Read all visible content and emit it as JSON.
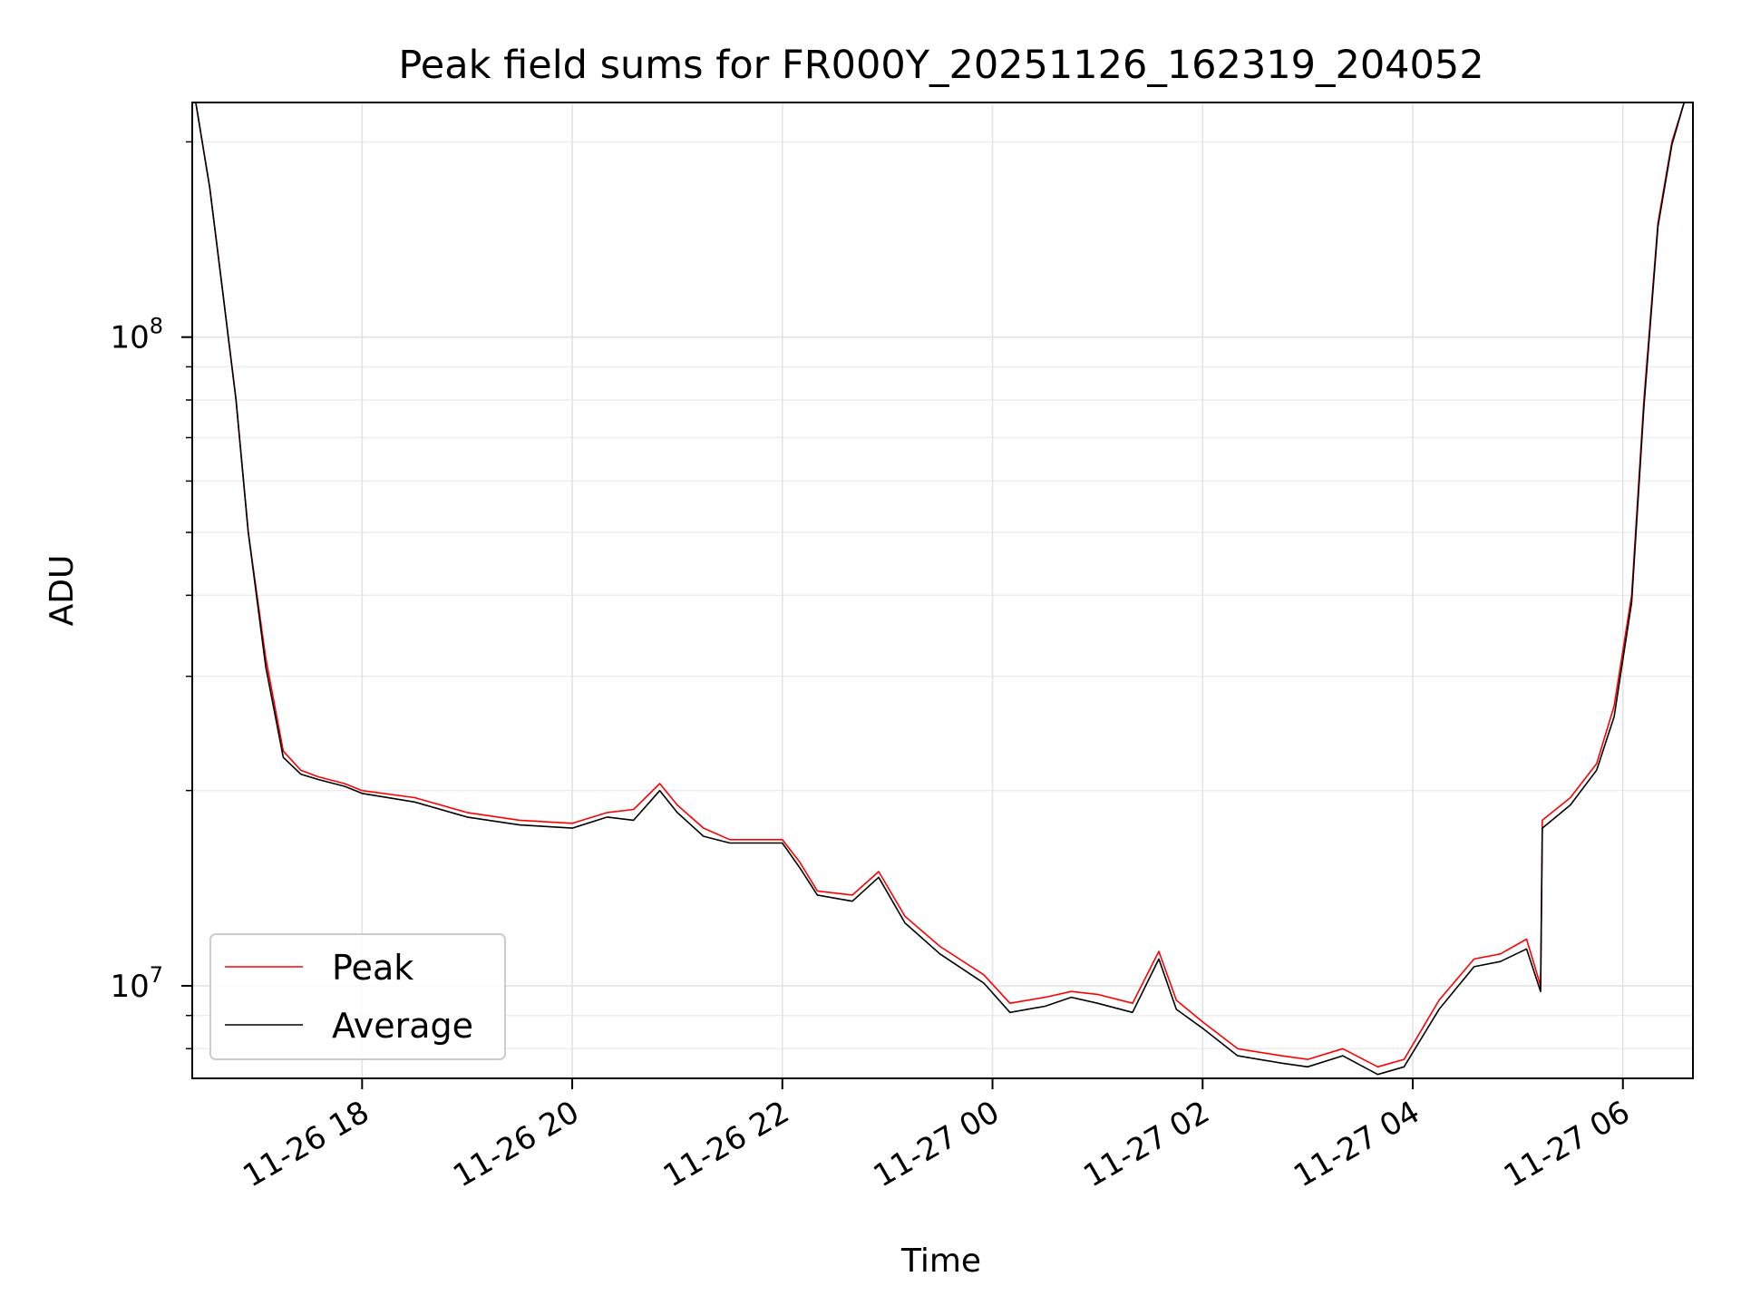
{
  "chart_data": {
    "type": "line",
    "title": "Peak field sums for FR000Y_20251126_162319_204052",
    "xlabel": "Time",
    "ylabel": "ADU",
    "yscale": "log",
    "ylim": [
      7200000,
      230000000
    ],
    "xlim": [
      "2025-11-26 16:23",
      "2025-11-27 06:40"
    ],
    "x_ticks": [
      {
        "t": "2025-11-26 18:00",
        "label": "11-26 18"
      },
      {
        "t": "2025-11-26 20:00",
        "label": "11-26 20"
      },
      {
        "t": "2025-11-26 22:00",
        "label": "11-26 22"
      },
      {
        "t": "2025-11-27 00:00",
        "label": "11-27 00"
      },
      {
        "t": "2025-11-27 02:00",
        "label": "11-27 02"
      },
      {
        "t": "2025-11-27 04:00",
        "label": "11-27 04"
      },
      {
        "t": "2025-11-27 06:00",
        "label": "11-27 06"
      }
    ],
    "y_ticks": [
      {
        "value": 10000000,
        "base": "10",
        "exp": "7"
      },
      {
        "value": 100000000,
        "base": "10",
        "exp": "8"
      }
    ],
    "grid": true,
    "legend": "lower-left",
    "series": [
      {
        "name": "Peak",
        "color": "#ff0000",
        "x": [
          "2025-11-26 16:25",
          "2025-11-26 16:33",
          "2025-11-26 16:40",
          "2025-11-26 16:48",
          "2025-11-26 16:55",
          "2025-11-26 17:05",
          "2025-11-26 17:15",
          "2025-11-26 17:25",
          "2025-11-26 17:35",
          "2025-11-26 17:50",
          "2025-11-26 18:00",
          "2025-11-26 18:30",
          "2025-11-26 19:00",
          "2025-11-26 19:30",
          "2025-11-26 20:00",
          "2025-11-26 20:20",
          "2025-11-26 20:35",
          "2025-11-26 20:50",
          "2025-11-26 21:00",
          "2025-11-26 21:15",
          "2025-11-26 21:30",
          "2025-11-26 22:00",
          "2025-11-26 22:10",
          "2025-11-26 22:20",
          "2025-11-26 22:40",
          "2025-11-26 22:55",
          "2025-11-26 23:10",
          "2025-11-26 23:30",
          "2025-11-26 23:55",
          "2025-11-27 00:10",
          "2025-11-27 00:30",
          "2025-11-27 00:45",
          "2025-11-27 01:00",
          "2025-11-27 01:20",
          "2025-11-27 01:35",
          "2025-11-27 01:45",
          "2025-11-27 02:00",
          "2025-11-27 02:20",
          "2025-11-27 02:45",
          "2025-11-27 03:00",
          "2025-11-27 03:20",
          "2025-11-27 03:40",
          "2025-11-27 03:55",
          "2025-11-27 04:15",
          "2025-11-27 04:35",
          "2025-11-27 04:50",
          "2025-11-27 05:05",
          "2025-11-27 05:13",
          "2025-11-27 05:14",
          "2025-11-27 05:30",
          "2025-11-27 05:45",
          "2025-11-27 05:55",
          "2025-11-27 06:05",
          "2025-11-27 06:12",
          "2025-11-27 06:20",
          "2025-11-27 06:28",
          "2025-11-27 06:35"
        ],
        "values": [
          230000000,
          170000000,
          120000000,
          80000000,
          50000000,
          32000000,
          23000000,
          21500000,
          21000000,
          20500000,
          20000000,
          19500000,
          18500000,
          18000000,
          17800000,
          18500000,
          18700000,
          20500000,
          19000000,
          17500000,
          16800000,
          16800000,
          15500000,
          14000000,
          13800000,
          15000000,
          12800000,
          11500000,
          10400000,
          9400000,
          9600000,
          9800000,
          9700000,
          9400000,
          11300000,
          9500000,
          8800000,
          8000000,
          7800000,
          7700000,
          8000000,
          7500000,
          7700000,
          9500000,
          11000000,
          11200000,
          11800000,
          10000000,
          18000000,
          19500000,
          22000000,
          27000000,
          40000000,
          80000000,
          150000000,
          200000000,
          230000000
        ]
      },
      {
        "name": "Average",
        "color": "#000000",
        "x": [
          "2025-11-26 16:25",
          "2025-11-26 16:33",
          "2025-11-26 16:40",
          "2025-11-26 16:48",
          "2025-11-26 16:55",
          "2025-11-26 17:05",
          "2025-11-26 17:15",
          "2025-11-26 17:25",
          "2025-11-26 17:35",
          "2025-11-26 17:50",
          "2025-11-26 18:00",
          "2025-11-26 18:30",
          "2025-11-26 19:00",
          "2025-11-26 19:30",
          "2025-11-26 20:00",
          "2025-11-26 20:20",
          "2025-11-26 20:35",
          "2025-11-26 20:50",
          "2025-11-26 21:00",
          "2025-11-26 21:15",
          "2025-11-26 21:30",
          "2025-11-26 22:00",
          "2025-11-26 22:10",
          "2025-11-26 22:20",
          "2025-11-26 22:40",
          "2025-11-26 22:55",
          "2025-11-26 23:10",
          "2025-11-26 23:30",
          "2025-11-26 23:55",
          "2025-11-27 00:10",
          "2025-11-27 00:30",
          "2025-11-27 00:45",
          "2025-11-27 01:00",
          "2025-11-27 01:20",
          "2025-11-27 01:35",
          "2025-11-27 01:45",
          "2025-11-27 02:00",
          "2025-11-27 02:20",
          "2025-11-27 02:45",
          "2025-11-27 03:00",
          "2025-11-27 03:20",
          "2025-11-27 03:40",
          "2025-11-27 03:55",
          "2025-11-27 04:15",
          "2025-11-27 04:35",
          "2025-11-27 04:50",
          "2025-11-27 05:05",
          "2025-11-27 05:13",
          "2025-11-27 05:14",
          "2025-11-27 05:30",
          "2025-11-27 05:45",
          "2025-11-27 05:55",
          "2025-11-27 06:05",
          "2025-11-27 06:12",
          "2025-11-27 06:20",
          "2025-11-27 06:28",
          "2025-11-27 06:35"
        ],
        "values": [
          230000000,
          170000000,
          120000000,
          80000000,
          50000000,
          31000000,
          22500000,
          21200000,
          20800000,
          20300000,
          19800000,
          19200000,
          18200000,
          17700000,
          17500000,
          18200000,
          18000000,
          20000000,
          18500000,
          17000000,
          16600000,
          16600000,
          15200000,
          13800000,
          13500000,
          14700000,
          12500000,
          11200000,
          10100000,
          9100000,
          9300000,
          9600000,
          9400000,
          9100000,
          11000000,
          9200000,
          8600000,
          7800000,
          7600000,
          7500000,
          7800000,
          7300000,
          7500000,
          9200000,
          10700000,
          10900000,
          11400000,
          9800000,
          17500000,
          19000000,
          21500000,
          26000000,
          39000000,
          78000000,
          148000000,
          198000000,
          230000000
        ]
      }
    ]
  }
}
